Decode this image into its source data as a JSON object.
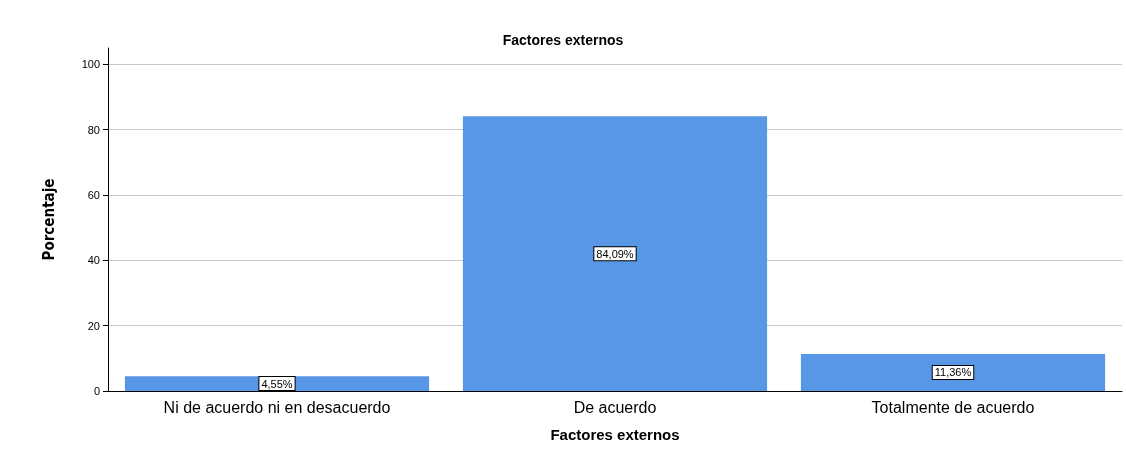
{
  "chart_data": {
    "type": "bar",
    "title": "Factores externos",
    "xlabel": "Factores externos",
    "ylabel": "Porcentaje",
    "categories": [
      "Ni de acuerdo ni en desacuerdo",
      "De acuerdo",
      "Totalmente de acuerdo"
    ],
    "values": [
      4.55,
      84.09,
      11.36
    ],
    "value_labels": [
      "4,55%",
      "84,09%",
      "11,36%"
    ],
    "color": "#5897e6",
    "ylim": [
      0,
      105
    ],
    "yticks": [
      0,
      20,
      40,
      60,
      80,
      100
    ],
    "grid": "y"
  }
}
